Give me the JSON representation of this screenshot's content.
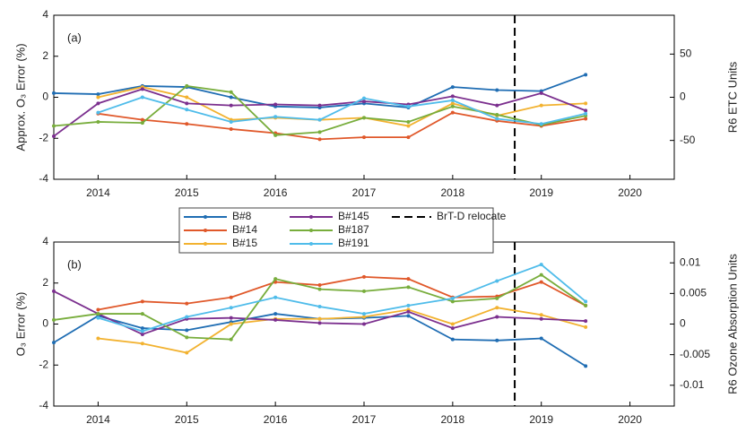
{
  "chart_data": [
    {
      "type": "line",
      "panel_label": "(a)",
      "ylabel": "Approx. O₃ Error (%)",
      "y2label": "R6 ETC Units",
      "x": [
        2013.5,
        2014,
        2014.5,
        2015,
        2015.5,
        2016,
        2016.5,
        2017,
        2017.5,
        2018,
        2018.5,
        2019,
        2019.5
      ],
      "xlim": [
        2013.5,
        2020.5
      ],
      "xticks": [
        2014,
        2015,
        2016,
        2017,
        2018,
        2019,
        2020
      ],
      "ylim": [
        -4,
        4
      ],
      "yticks": [
        -4,
        -2,
        0,
        2,
        4
      ],
      "y2lim": [
        -95,
        95
      ],
      "y2ticks": [
        -50,
        0,
        50
      ],
      "vline": {
        "x": 2018.7,
        "label": "BrT-D relocate"
      },
      "series": [
        {
          "name": "B#8",
          "color": "#1f6db3",
          "values": [
            0.2,
            0.15,
            0.55,
            0.5,
            0.0,
            -0.45,
            -0.5,
            -0.3,
            -0.5,
            0.5,
            0.35,
            0.3,
            1.1
          ]
        },
        {
          "name": "B#14",
          "color": "#e0582a",
          "values": [
            null,
            -0.8,
            -1.1,
            -1.3,
            -1.55,
            -1.75,
            -2.05,
            -1.95,
            -1.95,
            -0.75,
            -1.15,
            -1.4,
            -1.05
          ]
        },
        {
          "name": "B#15",
          "color": "#f2b230",
          "values": [
            null,
            0.0,
            0.5,
            0.0,
            -1.1,
            -1.0,
            -1.1,
            -1.0,
            -1.4,
            -0.3,
            -0.9,
            -0.4,
            -0.3
          ]
        },
        {
          "name": "B#145",
          "color": "#7b2f8e",
          "values": [
            -1.9,
            -0.3,
            0.4,
            -0.3,
            -0.4,
            -0.35,
            -0.4,
            -0.2,
            -0.35,
            0.05,
            -0.4,
            0.2,
            -0.65
          ]
        },
        {
          "name": "B#187",
          "color": "#78ad3c",
          "values": [
            -1.4,
            -1.2,
            -1.25,
            0.55,
            0.25,
            -1.85,
            -1.7,
            -1.0,
            -1.2,
            -0.45,
            -0.85,
            -1.35,
            -0.9
          ]
        },
        {
          "name": "B#191",
          "color": "#4fbcea",
          "values": [
            null,
            -0.75,
            0.0,
            -0.6,
            -1.2,
            -0.95,
            -1.1,
            -0.05,
            -0.45,
            -0.15,
            -1.05,
            -1.3,
            -0.8
          ]
        }
      ]
    },
    {
      "type": "line",
      "panel_label": "(b)",
      "ylabel": "O₃ Error (%)",
      "y2label": "R6 Ozone Absorption Units",
      "x": [
        2013.5,
        2014,
        2014.5,
        2015,
        2015.5,
        2016,
        2016.5,
        2017,
        2017.5,
        2018,
        2018.5,
        2019,
        2019.5
      ],
      "xlim": [
        2013.5,
        2020.5
      ],
      "xticks": [
        2014,
        2015,
        2016,
        2017,
        2018,
        2019,
        2020
      ],
      "ylim": [
        -4,
        4
      ],
      "yticks": [
        -4,
        -2,
        0,
        2,
        4
      ],
      "y2lim": [
        -0.0134,
        0.0134
      ],
      "y2ticks": [
        -0.01,
        -0.005,
        0,
        0.005,
        0.01
      ],
      "vline": {
        "x": 2018.7
      },
      "series": [
        {
          "values": [
            -0.9,
            0.4,
            -0.2,
            -0.3,
            0.1,
            0.5,
            0.25,
            0.3,
            0.4,
            -0.75,
            -0.8,
            -0.7,
            -2.05
          ]
        },
        {
          "values": [
            null,
            0.7,
            1.1,
            1.0,
            1.3,
            2.05,
            1.9,
            2.3,
            2.2,
            1.3,
            1.35,
            2.05,
            0.9
          ]
        },
        {
          "values": [
            null,
            -0.7,
            -0.95,
            -1.4,
            0.0,
            0.25,
            0.25,
            0.35,
            0.7,
            0.0,
            0.8,
            0.45,
            -0.15
          ]
        },
        {
          "values": [
            1.6,
            0.5,
            -0.5,
            0.25,
            0.3,
            0.2,
            0.05,
            0.0,
            0.6,
            -0.2,
            0.35,
            0.25,
            0.15
          ]
        },
        {
          "values": [
            0.2,
            0.5,
            0.5,
            -0.65,
            -0.75,
            2.2,
            1.7,
            1.6,
            1.8,
            1.1,
            1.25,
            2.4,
            0.9
          ]
        },
        {
          "values": [
            null,
            0.3,
            -0.35,
            0.35,
            0.8,
            1.3,
            0.85,
            0.5,
            0.9,
            1.25,
            2.1,
            2.9,
            1.1
          ]
        }
      ]
    }
  ]
}
